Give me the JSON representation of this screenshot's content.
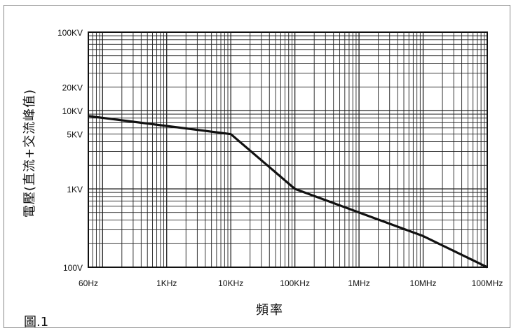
{
  "chart_data": {
    "type": "line",
    "title": "",
    "caption": "圖.1",
    "xlabel": "頻率",
    "ylabel": "電壓(直流+交流峰值)",
    "x_scale": "log",
    "y_scale": "log",
    "xlim": [
      60,
      100000000
    ],
    "ylim": [
      100,
      100000
    ],
    "grid": true,
    "x_ticks": [
      {
        "value": 60,
        "label": "60Hz"
      },
      {
        "value": 1000,
        "label": "1KHz"
      },
      {
        "value": 10000,
        "label": "10KHz"
      },
      {
        "value": 100000,
        "label": "100KHz"
      },
      {
        "value": 1000000,
        "label": "1MHz"
      },
      {
        "value": 10000000,
        "label": "10MHz"
      },
      {
        "value": 100000000,
        "label": "100MHz"
      }
    ],
    "y_ticks": [
      {
        "value": 100,
        "label": "100V"
      },
      {
        "value": 1000,
        "label": "1KV"
      },
      {
        "value": 5000,
        "label": "5KV"
      },
      {
        "value": 10000,
        "label": "10KV"
      },
      {
        "value": 20000,
        "label": "20KV"
      },
      {
        "value": 100000,
        "label": "100KV"
      }
    ],
    "series": [
      {
        "x": [
          60,
          10000,
          100000,
          1000000,
          10000000,
          100000000
        ],
        "y": [
          8500,
          5000,
          1000,
          500,
          250,
          100
        ]
      }
    ]
  }
}
